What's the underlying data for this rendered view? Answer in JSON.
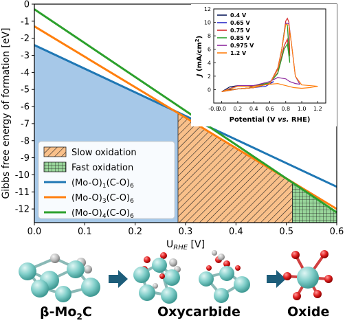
{
  "chart_data": [
    {
      "type": "area",
      "xlabel": "U",
      "xlabel_sub": "RHE",
      "xlabel_unit": "[V]",
      "ylabel": "Gibbs free energy of formation [eV]",
      "xlim": [
        0.0,
        0.6
      ],
      "ylim": [
        -12.8,
        0
      ],
      "x_ticks": [
        "0.0",
        "0.1",
        "0.2",
        "0.3",
        "0.4",
        "0.5",
        "0.6"
      ],
      "x_tick_values": [
        0.0,
        0.1,
        0.2,
        0.3,
        0.4,
        0.5,
        0.6
      ],
      "y_ticks": [
        "0",
        "-1",
        "-2",
        "-3",
        "-4",
        "-5",
        "-6",
        "-7",
        "-8",
        "-9",
        "-10",
        "-11",
        "-12"
      ],
      "y_tick_values": [
        0,
        -1,
        -2,
        -3,
        -4,
        -5,
        -6,
        -7,
        -8,
        -9,
        -10,
        -11,
        -12
      ],
      "series": [
        {
          "name_main": "(Mo-O)",
          "name_sub1": "1",
          "name_mid": "(C-O)",
          "name_sub2": "6",
          "color": "#1f77b4",
          "x": [
            0.0,
            0.6
          ],
          "y": [
            -2.4,
            -10.7
          ]
        },
        {
          "name_main": "(Mo-O)",
          "name_sub1": "3",
          "name_mid": "(C-O)",
          "name_sub2": "6",
          "color": "#ff7f0e",
          "x": [
            0.0,
            0.6
          ],
          "y": [
            -1.3,
            -12.0
          ]
        },
        {
          "name_main": "(Mo-O)",
          "name_sub1": "4",
          "name_mid": "(C-O)",
          "name_sub2": "6",
          "color": "#2ca02c",
          "x": [
            0.0,
            0.6
          ],
          "y": [
            -0.3,
            -12.2
          ]
        }
      ],
      "regions": [
        {
          "name": "",
          "x_range": [
            0.0,
            0.285
          ],
          "fill": "#a6c8e8",
          "pattern": "none"
        },
        {
          "name": "Slow oxidation",
          "x_range": [
            0.285,
            0.512
          ],
          "fill": "#f9c08a",
          "pattern": "hatch"
        },
        {
          "name": "Fast oxidation",
          "x_range": [
            0.512,
            0.6
          ],
          "fill": "#98d59a",
          "pattern": "grid"
        }
      ],
      "legend_placement": "lower-left"
    },
    {
      "type": "line",
      "xlabel_parts": [
        "Potential (V ",
        "vs.",
        " RHE)"
      ],
      "ylabel_italic": "J",
      "ylabel_rest": " (mA/cm",
      "ylabel_sup": "2",
      "ylabel_close": ")",
      "xlim": [
        -0.1,
        1.3
      ],
      "ylim": [
        -2,
        12
      ],
      "x_ticks": [
        "-0.0",
        "0.0",
        "0.2",
        "0.4",
        "0.6",
        "0.8",
        "1.0",
        "1.2"
      ],
      "x_tick_values": [
        -0.1,
        0.0,
        0.2,
        0.4,
        0.6,
        0.8,
        1.0,
        1.2
      ],
      "y_ticks": [
        "0",
        "2",
        "4",
        "6",
        "8",
        "10",
        "12"
      ],
      "y_tick_values": [
        0,
        2,
        4,
        6,
        8,
        10,
        12
      ],
      "legend_placement": "top-left",
      "series": [
        {
          "name": "0.4 V",
          "color": "#0a1a5c",
          "x": [
            0.0,
            0.1,
            0.2,
            0.3,
            0.4,
            0.3,
            0.2,
            0.1,
            0.0
          ],
          "y": [
            -0.3,
            0.0,
            0.1,
            0.2,
            0.3,
            0.6,
            0.6,
            0.4,
            -0.3
          ]
        },
        {
          "name": "0.65 V",
          "color": "#2a2ac8",
          "x": [
            0.0,
            0.2,
            0.4,
            0.55,
            0.65,
            0.55,
            0.4,
            0.2,
            0.0
          ],
          "y": [
            -0.3,
            0.1,
            0.3,
            0.5,
            1.2,
            0.8,
            0.6,
            0.6,
            -0.3
          ]
        },
        {
          "name": "0.75 V",
          "color": "#d62728",
          "x": [
            0.0,
            0.2,
            0.4,
            0.6,
            0.7,
            0.75,
            0.78,
            0.8,
            0.82,
            0.84,
            0.85,
            0.82,
            0.78,
            0.7,
            0.6,
            0.4,
            0.2,
            0.0
          ],
          "y": [
            -0.3,
            0.1,
            0.3,
            0.9,
            3.2,
            6.0,
            8.5,
            10.2,
            10.6,
            10.0,
            5.0,
            7.5,
            6.5,
            2.5,
            1.0,
            0.6,
            0.6,
            -0.3
          ]
        },
        {
          "name": "0.85 V",
          "color": "#2ca02c",
          "x": [
            0.0,
            0.2,
            0.4,
            0.6,
            0.7,
            0.75,
            0.78,
            0.8,
            0.82,
            0.85,
            0.82,
            0.78,
            0.7,
            0.6,
            0.4,
            0.2,
            0.0
          ],
          "y": [
            -0.3,
            0.1,
            0.3,
            0.9,
            3.0,
            5.8,
            8.5,
            9.8,
            9.6,
            4.0,
            6.8,
            6.0,
            2.4,
            1.0,
            0.6,
            0.6,
            -0.3
          ]
        },
        {
          "name": "0.975 V",
          "color": "#8e2a9e",
          "x": [
            0.0,
            0.2,
            0.4,
            0.6,
            0.7,
            0.75,
            0.8,
            0.84,
            0.88,
            0.92,
            0.975,
            0.92,
            0.85,
            0.8,
            0.7,
            0.6,
            0.4,
            0.2,
            0.0
          ],
          "y": [
            -0.3,
            0.1,
            0.3,
            0.9,
            3.0,
            6.0,
            9.9,
            9.8,
            6.0,
            2.0,
            0.8,
            0.9,
            1.2,
            1.6,
            1.8,
            1.2,
            0.6,
            0.6,
            -0.3
          ]
        },
        {
          "name": "1.2 V",
          "color": "#ff7f0e",
          "x": [
            0.0,
            0.2,
            0.4,
            0.6,
            0.7,
            0.75,
            0.8,
            0.84,
            0.88,
            0.92,
            1.0,
            1.1,
            1.2,
            1.1,
            1.0,
            0.9,
            0.8,
            0.7,
            0.6,
            0.4,
            0.2,
            0.0
          ],
          "y": [
            -0.3,
            0.1,
            0.3,
            0.9,
            3.0,
            6.0,
            9.7,
            9.6,
            6.0,
            2.0,
            0.7,
            0.6,
            0.5,
            0.3,
            0.2,
            0.3,
            0.6,
            0.9,
            0.8,
            0.5,
            0.5,
            -0.3
          ]
        }
      ]
    }
  ],
  "structures": {
    "atom_colors": {
      "mo": "#7ecdc8",
      "c": "#b9b9b9",
      "o": "#e02020"
    },
    "arrow_color": "#1d5d7a",
    "labels": [
      {
        "main": "β-Mo",
        "sub": "2",
        "rest": "C"
      },
      {
        "main": "Oxycarbide",
        "sub": "",
        "rest": ""
      },
      {
        "main": "Oxide",
        "sub": "",
        "rest": ""
      }
    ]
  }
}
